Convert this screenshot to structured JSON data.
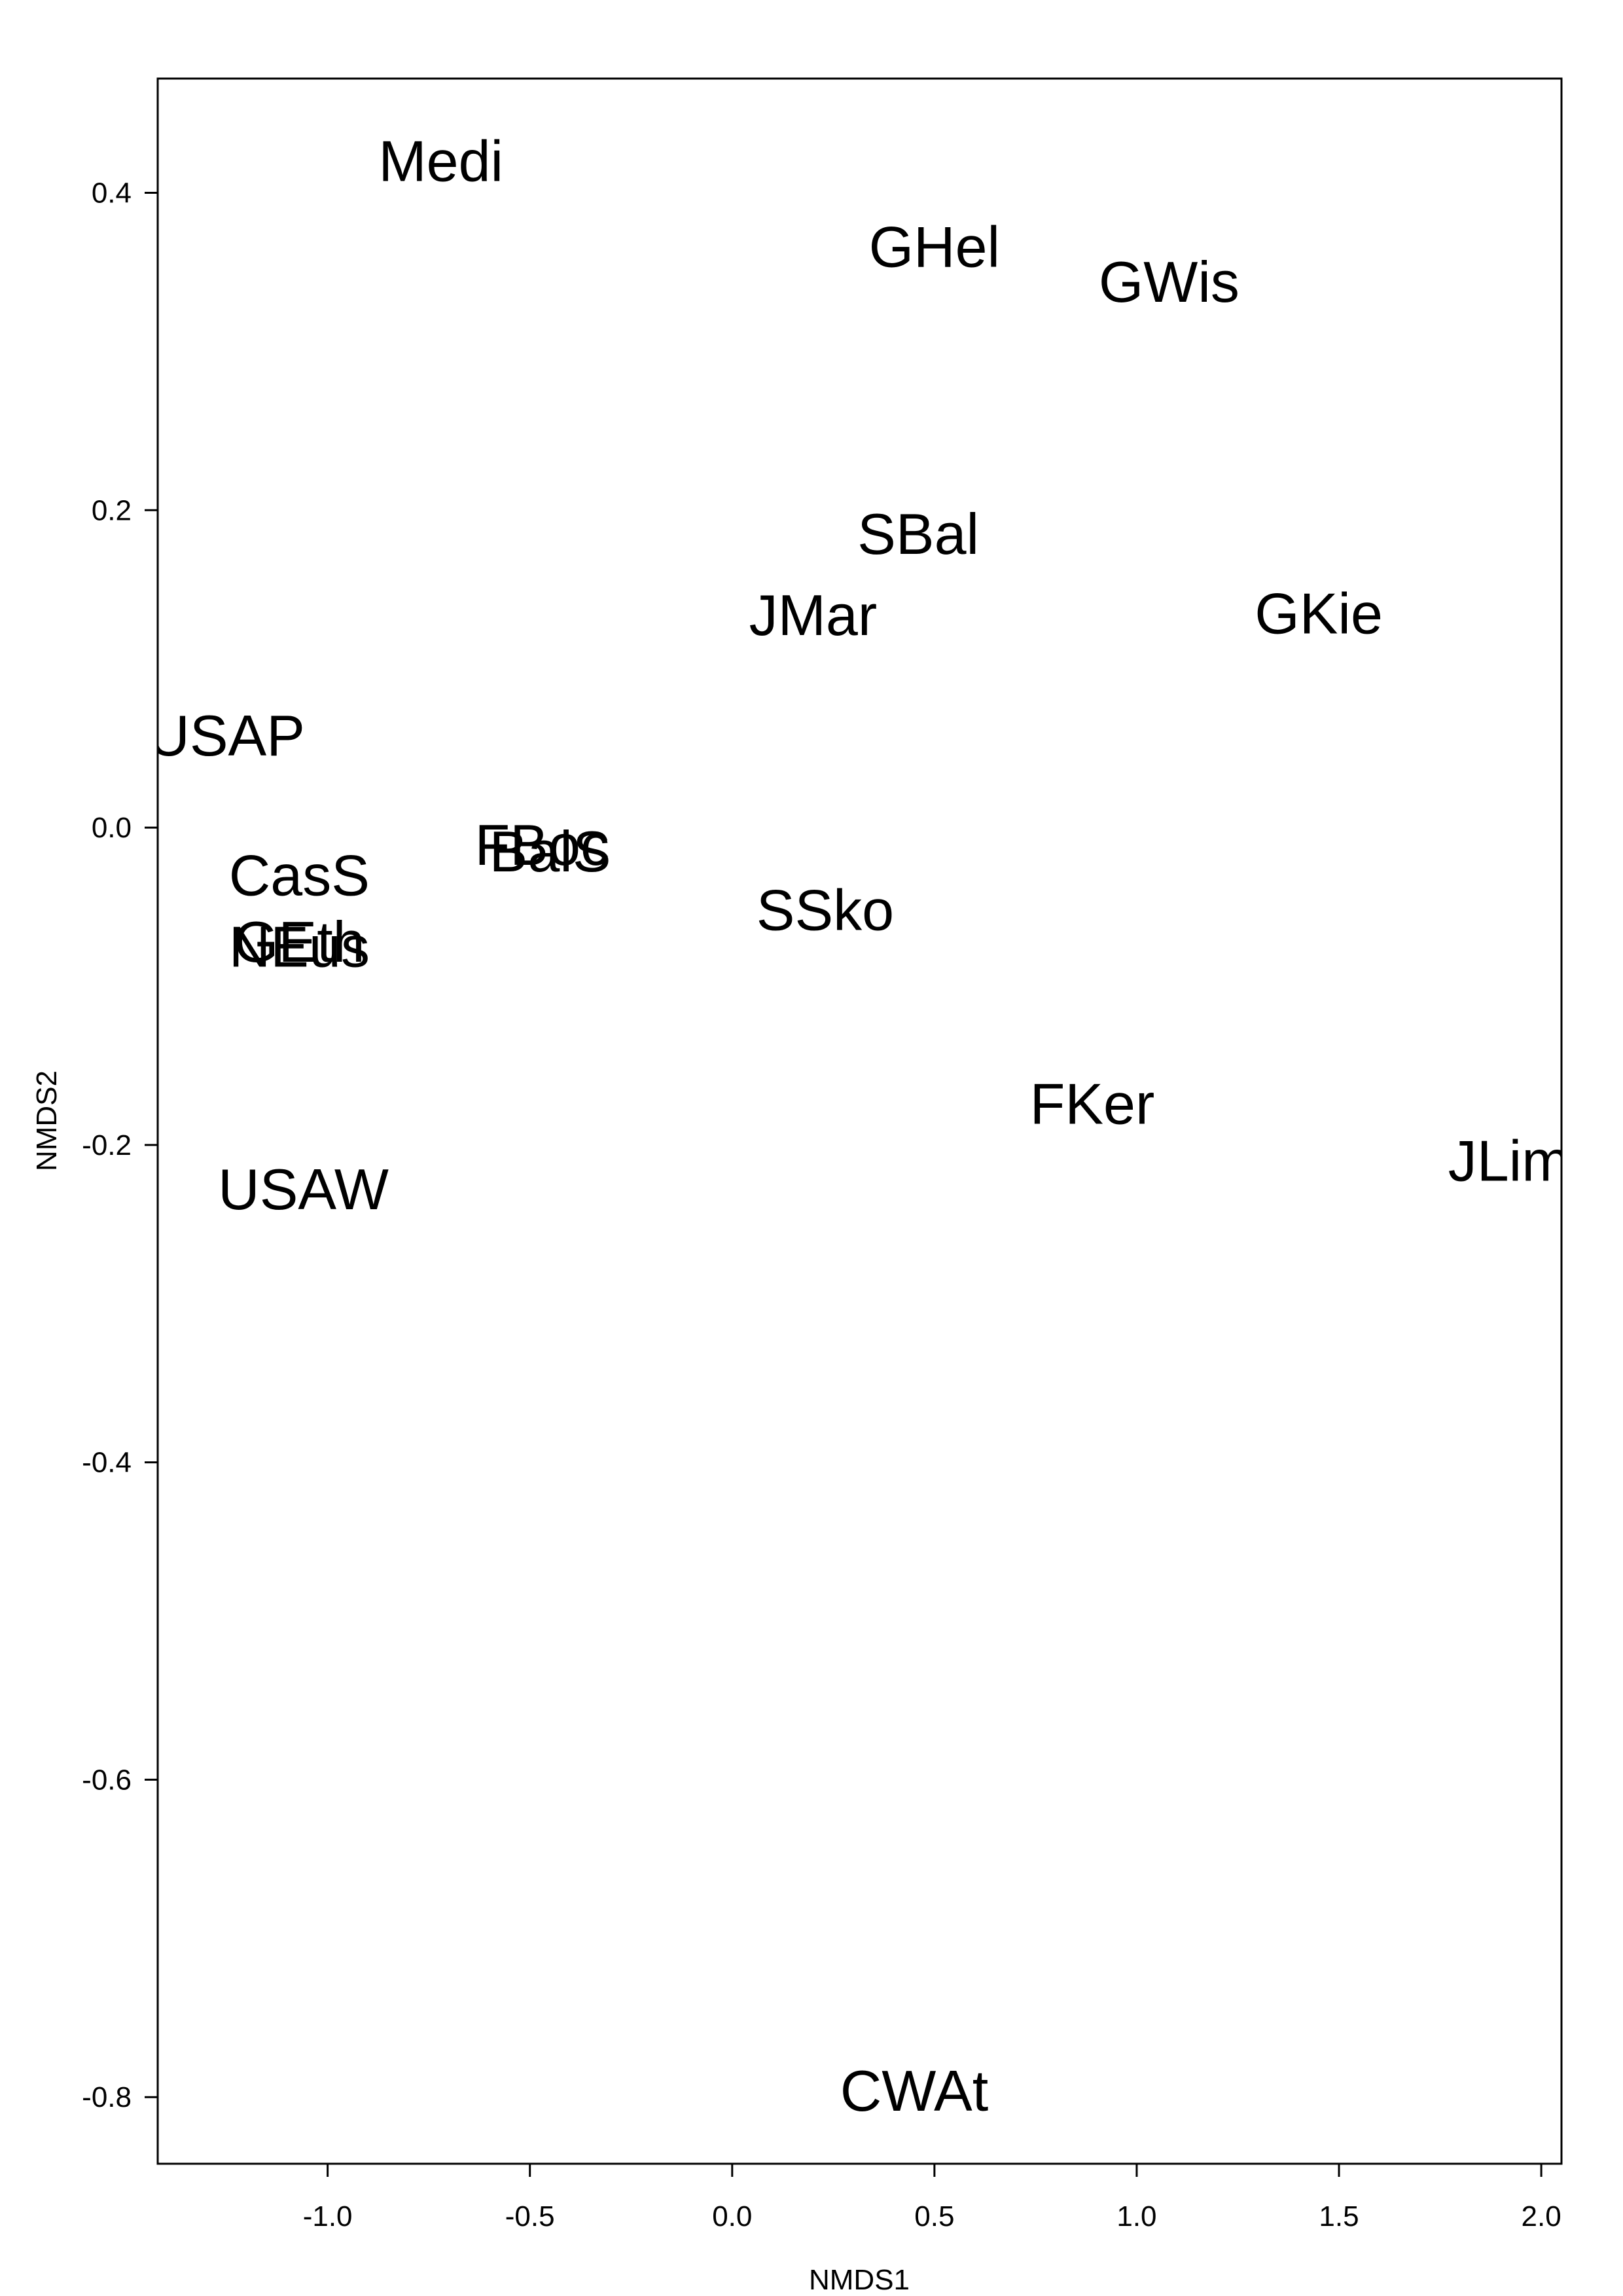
{
  "chart_data": {
    "type": "scatter",
    "title": "",
    "xlabel": "NMDS1",
    "ylabel": "NMDS2",
    "xlim": [
      -1.42,
      2.05
    ],
    "ylim": [
      -0.842,
      0.472
    ],
    "xticks": [
      {
        "value": -1.0,
        "label": "-1.0"
      },
      {
        "value": -0.5,
        "label": "-0.5"
      },
      {
        "value": 0.0,
        "label": "0.0"
      },
      {
        "value": 0.5,
        "label": "0.5"
      },
      {
        "value": 1.0,
        "label": "1.0"
      },
      {
        "value": 1.5,
        "label": "1.5"
      },
      {
        "value": 2.0,
        "label": "2.0"
      }
    ],
    "yticks": [
      {
        "value": 0.4,
        "label": "0.4"
      },
      {
        "value": 0.2,
        "label": "0.2"
      },
      {
        "value": 0.0,
        "label": "0.0"
      },
      {
        "value": -0.2,
        "label": "-0.2"
      },
      {
        "value": -0.4,
        "label": "-0.4"
      },
      {
        "value": -0.6,
        "label": "-0.6"
      },
      {
        "value": -0.8,
        "label": "-0.8"
      }
    ],
    "grid": false,
    "points": [
      {
        "label": "Medi",
        "x": -0.72,
        "y": 0.42
      },
      {
        "label": "GHel",
        "x": 0.5,
        "y": 0.366
      },
      {
        "label": "GWis",
        "x": 1.08,
        "y": 0.344
      },
      {
        "label": "SBal",
        "x": 0.46,
        "y": 0.185
      },
      {
        "label": "JMar",
        "x": 0.2,
        "y": 0.134
      },
      {
        "label": "GKie",
        "x": 1.45,
        "y": 0.135
      },
      {
        "label": "USAP",
        "x": -1.25,
        "y": 0.058
      },
      {
        "label": "FBoc",
        "x": -0.47,
        "y": -0.011
      },
      {
        "label": "BalS",
        "x": -0.45,
        "y": -0.015
      },
      {
        "label": "CasS",
        "x": -1.07,
        "y": -0.03
      },
      {
        "label": "SSko",
        "x": 0.23,
        "y": -0.052
      },
      {
        "label": "GEth",
        "x": -1.07,
        "y": -0.072
      },
      {
        "label": "NEus",
        "x": -1.07,
        "y": -0.075
      },
      {
        "label": "FKer",
        "x": 0.89,
        "y": -0.174
      },
      {
        "label": "JLim",
        "x": 1.92,
        "y": -0.21
      },
      {
        "label": "USAW",
        "x": -1.06,
        "y": -0.228
      },
      {
        "label": "CWAt",
        "x": 0.45,
        "y": -0.796
      }
    ]
  }
}
